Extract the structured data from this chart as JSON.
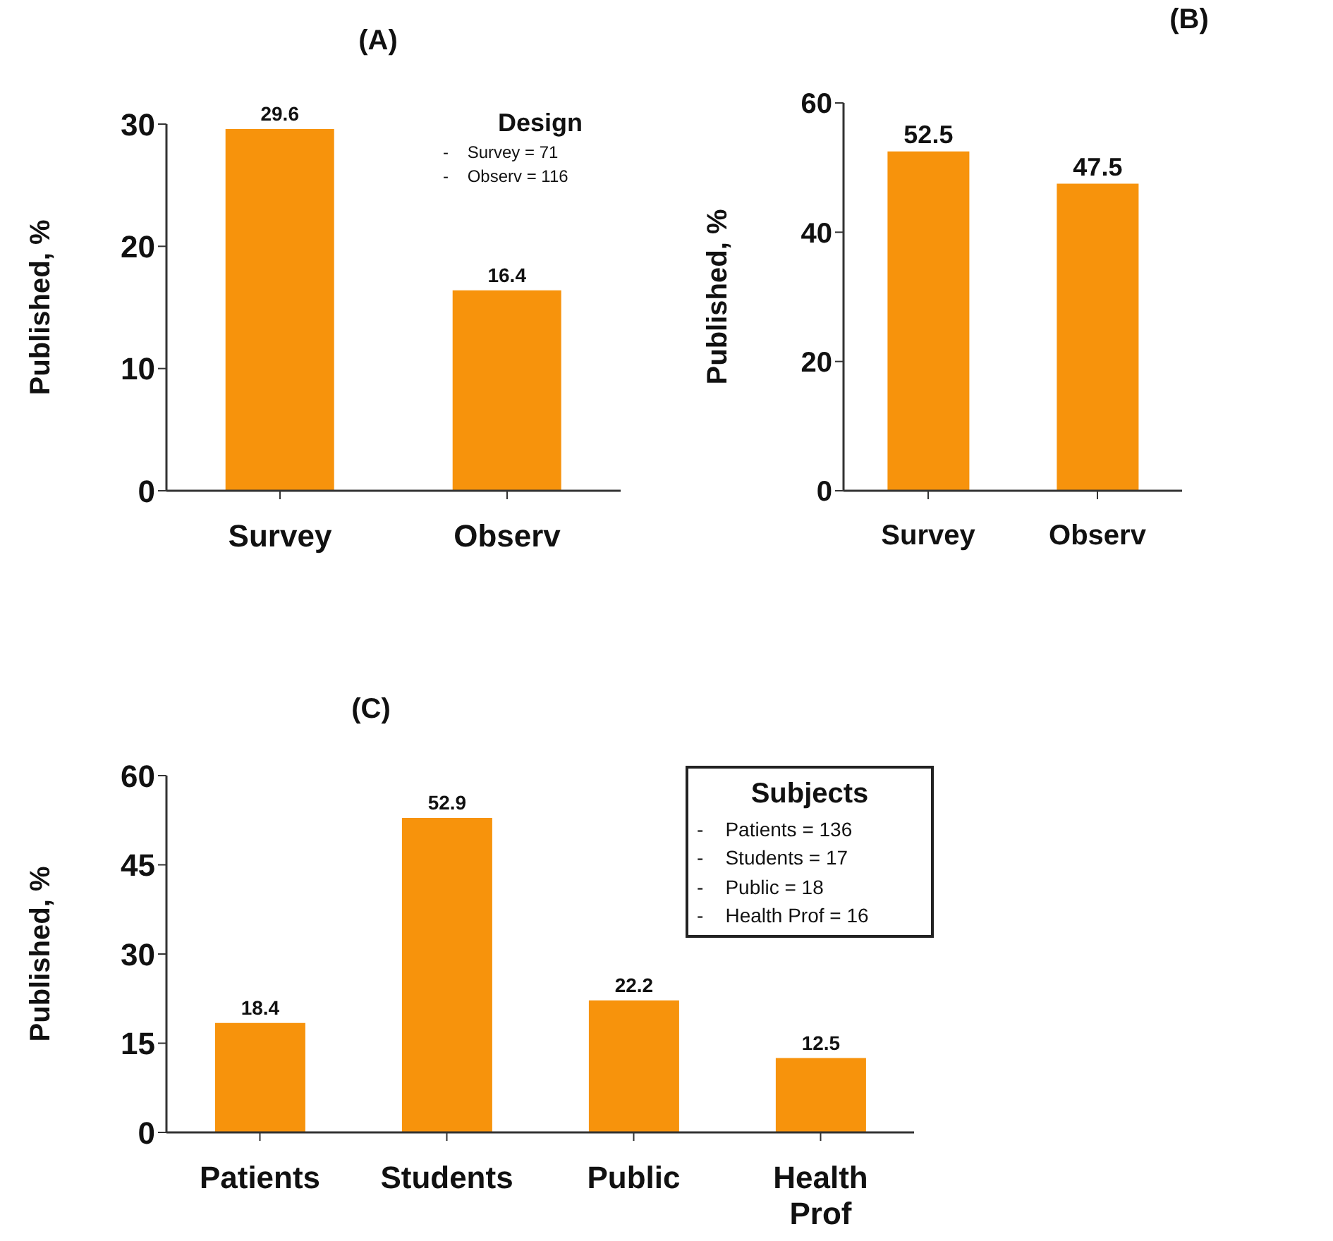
{
  "chart_data": [
    {
      "type": "bar",
      "title": "(A)",
      "ylabel": "Published, %",
      "categories": [
        "Survey",
        "Observ"
      ],
      "values": [
        29.6,
        16.4
      ],
      "color": "#f7930c",
      "ylim": [
        0,
        30
      ],
      "yticks": [
        0,
        10,
        20,
        30
      ],
      "data_labels": true,
      "annotations": [
        "Design",
        "-    Survey = 71",
        "-    Observ = 116"
      ]
    },
    {
      "type": "bar",
      "title": "(B)",
      "ylabel": "Published, %",
      "categories": [
        "Survey",
        "Observ"
      ],
      "values": [
        52.5,
        47.5
      ],
      "color": "#f7930c",
      "ylim": [
        0,
        60
      ],
      "yticks": [
        0,
        20,
        40,
        60
      ],
      "data_labels": true
    },
    {
      "type": "bar",
      "title": "(C)",
      "ylabel": "Published, %",
      "categories": [
        "Patients",
        "Students",
        "Public",
        "Health Prof"
      ],
      "values": [
        18.4,
        52.9,
        22.2,
        12.5
      ],
      "color": "#f7930c",
      "ylim": [
        0,
        60
      ],
      "yticks": [
        0,
        15,
        30,
        45,
        60
      ],
      "data_labels": true,
      "annotations": [
        "Subjects",
        "-    Patients = 136",
        "-    Students = 17",
        "-    Public = 18",
        "-    Health Prof = 16"
      ]
    }
  ]
}
